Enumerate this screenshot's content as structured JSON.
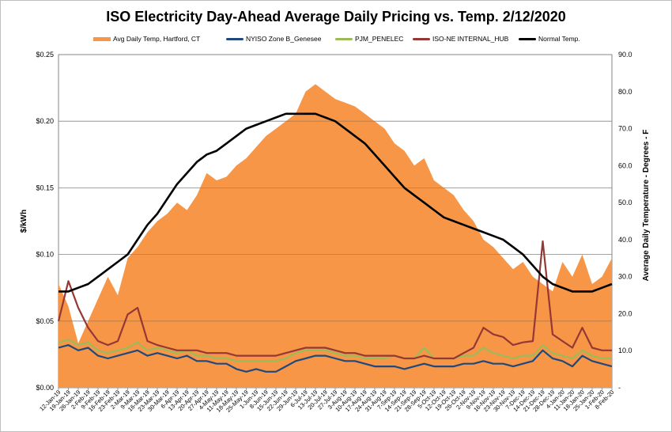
{
  "chart_data": {
    "type": "area",
    "title": "ISO Electricity Day-Ahead Average Daily Pricing vs. Temp. 2/12/2020",
    "ylabel": "$/kWh",
    "y2label": "Average Daily Temperature - Degrees - F",
    "ylim": [
      0,
      0.25
    ],
    "y2lim": [
      0,
      90
    ],
    "yticks": [
      "$0.00",
      "$0.05",
      "$0.10",
      "$0.15",
      "$0.20",
      "$0.25"
    ],
    "y2ticks": [
      "-",
      "10.0",
      "20.0",
      "30.0",
      "40.0",
      "50.0",
      "60.0",
      "70.0",
      "80.0",
      "90.0"
    ],
    "grid": "horizontal",
    "legend_position": "top",
    "x_categories": [
      "12-Jan-19",
      "19-Jan-19",
      "26-Jan-19",
      "2-Feb-19",
      "9-Feb-19",
      "16-Feb-19",
      "23-Feb-19",
      "2-Mar-19",
      "9-Mar-19",
      "16-Mar-19",
      "23-Mar-19",
      "30-Mar-19",
      "6-Apr-19",
      "13-Apr-19",
      "20-Apr-19",
      "27-Apr-19",
      "4-May-19",
      "11-May-19",
      "18-May-19",
      "25-May-19",
      "1-Jun-19",
      "8-Jun-19",
      "15-Jun-19",
      "22-Jun-19",
      "29-Jun-19",
      "6-Jul-19",
      "13-Jul-19",
      "20-Jul-19",
      "27-Jul-19",
      "3-Aug-19",
      "10-Aug-19",
      "17-Aug-19",
      "24-Aug-19",
      "31-Aug-19",
      "7-Sep-19",
      "14-Sep-19",
      "21-Sep-19",
      "28-Sep-19",
      "5-Oct-19",
      "12-Oct-19",
      "19-Oct-19",
      "26-Oct-19",
      "2-Nov-19",
      "9-Nov-19",
      "16-Nov-19",
      "23-Nov-19",
      "30-Nov-19",
      "7-Dec-19",
      "14-Dec-19",
      "21-Dec-19",
      "28-Dec-19",
      "4-Jan-20",
      "11-Jan-20",
      "18-Jan-20",
      "25-Jan-20",
      "1-Feb-20",
      "8-Feb-20"
    ],
    "series": [
      {
        "name": "Avg Daily Temp, Hartford, CT",
        "axis": "right",
        "type": "area",
        "color": "#F79646",
        "values": [
          28,
          22,
          12,
          18,
          24,
          30,
          25,
          35,
          38,
          42,
          45,
          47,
          50,
          48,
          52,
          58,
          56,
          57,
          60,
          62,
          65,
          68,
          70,
          72,
          74,
          80,
          82,
          80,
          78,
          77,
          76,
          74,
          72,
          70,
          66,
          64,
          60,
          62,
          56,
          54,
          52,
          48,
          45,
          40,
          38,
          35,
          32,
          34,
          30,
          28,
          26,
          34,
          30,
          36,
          28,
          30,
          35
        ]
      },
      {
        "name": "NYISO Zone B_Genesee",
        "axis": "left",
        "type": "line",
        "color": "#1F497D",
        "values": [
          0.03,
          0.032,
          0.028,
          0.03,
          0.024,
          0.022,
          0.024,
          0.026,
          0.028,
          0.024,
          0.026,
          0.024,
          0.022,
          0.024,
          0.02,
          0.02,
          0.018,
          0.018,
          0.014,
          0.012,
          0.014,
          0.012,
          0.012,
          0.016,
          0.02,
          0.022,
          0.024,
          0.024,
          0.022,
          0.02,
          0.02,
          0.018,
          0.016,
          0.016,
          0.016,
          0.014,
          0.016,
          0.018,
          0.016,
          0.016,
          0.016,
          0.018,
          0.018,
          0.02,
          0.018,
          0.018,
          0.016,
          0.018,
          0.02,
          0.028,
          0.022,
          0.02,
          0.016,
          0.024,
          0.02,
          0.018,
          0.016
        ]
      },
      {
        "name": "PJM_PENELEC",
        "axis": "left",
        "type": "line",
        "color": "#9BBB59",
        "values": [
          0.034,
          0.036,
          0.032,
          0.034,
          0.028,
          0.026,
          0.028,
          0.03,
          0.034,
          0.028,
          0.03,
          0.028,
          0.026,
          0.028,
          0.024,
          0.024,
          0.022,
          0.022,
          0.02,
          0.02,
          0.02,
          0.02,
          0.02,
          0.022,
          0.026,
          0.028,
          0.028,
          0.028,
          0.026,
          0.024,
          0.024,
          0.022,
          0.022,
          0.022,
          0.024,
          0.022,
          0.022,
          0.03,
          0.022,
          0.022,
          0.022,
          0.024,
          0.024,
          0.03,
          0.026,
          0.024,
          0.022,
          0.024,
          0.024,
          0.032,
          0.026,
          0.024,
          0.022,
          0.028,
          0.024,
          0.022,
          0.022
        ]
      },
      {
        "name": "ISO-NE INTERNAL_HUB",
        "axis": "left",
        "type": "line",
        "color": "#953735",
        "values": [
          0.05,
          0.08,
          0.06,
          0.045,
          0.035,
          0.032,
          0.035,
          0.055,
          0.06,
          0.035,
          0.032,
          0.03,
          0.028,
          0.028,
          0.028,
          0.026,
          0.026,
          0.026,
          0.024,
          0.024,
          0.024,
          0.024,
          0.024,
          0.026,
          0.028,
          0.03,
          0.03,
          0.03,
          0.028,
          0.026,
          0.026,
          0.024,
          0.024,
          0.024,
          0.024,
          0.022,
          0.022,
          0.024,
          0.022,
          0.022,
          0.022,
          0.026,
          0.03,
          0.045,
          0.04,
          0.038,
          0.032,
          0.034,
          0.035,
          0.11,
          0.04,
          0.035,
          0.03,
          0.045,
          0.03,
          0.028,
          0.028
        ]
      },
      {
        "name": "Normal Temp.",
        "axis": "right",
        "type": "line",
        "color": "#000000",
        "values": [
          26,
          26,
          27,
          28,
          30,
          32,
          34,
          36,
          40,
          44,
          47,
          51,
          55,
          58,
          61,
          63,
          64,
          66,
          68,
          70,
          71,
          72,
          73,
          74,
          74,
          74,
          74,
          73,
          72,
          70,
          68,
          66,
          63,
          60,
          57,
          54,
          52,
          50,
          48,
          46,
          45,
          44,
          43,
          42,
          41,
          40,
          38,
          36,
          33,
          30,
          28,
          27,
          26,
          26,
          26,
          27,
          28
        ]
      }
    ]
  }
}
